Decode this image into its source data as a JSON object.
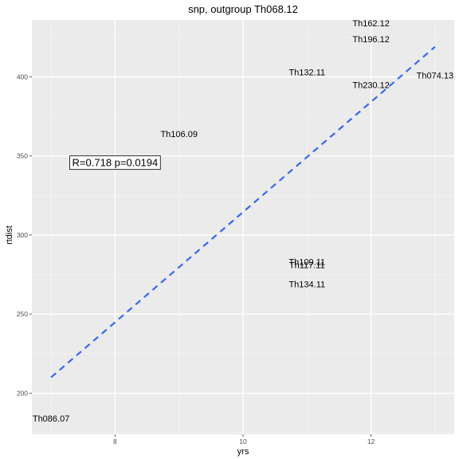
{
  "chart_data": {
    "type": "scatter",
    "title": "snp, outgroup Th068.12",
    "xlabel": "yrs",
    "ylabel": "rtdist",
    "xlim": [
      6.7,
      13.3
    ],
    "ylim": [
      174,
      436
    ],
    "xticks": [
      8,
      10,
      12
    ],
    "yticks": [
      200,
      250,
      300,
      350,
      400
    ],
    "grid": true,
    "points": [
      {
        "label": "Th086.07",
        "x": 7.0,
        "y": 184
      },
      {
        "label": "Th106.09",
        "x": 9.0,
        "y": 364
      },
      {
        "label": "Th132.11",
        "x": 11.0,
        "y": 403
      },
      {
        "label": "Th109.11",
        "x": 11.0,
        "y": 283
      },
      {
        "label": "Th117.11",
        "x": 11.0,
        "y": 281
      },
      {
        "label": "Th134.11",
        "x": 11.0,
        "y": 269
      },
      {
        "label": "Th162.12",
        "x": 12.0,
        "y": 434
      },
      {
        "label": "Th196.12",
        "x": 12.0,
        "y": 424
      },
      {
        "label": "Th230.12",
        "x": 12.0,
        "y": 395
      },
      {
        "label": "Th074.13",
        "x": 13.0,
        "y": 401
      }
    ],
    "fit_line": {
      "x": [
        7.0,
        13.0
      ],
      "y": [
        210,
        419
      ],
      "color": "#3366ff",
      "style": "dashed"
    },
    "annotation": {
      "text": "R=0.718 p=0.0194",
      "x": 8.0,
      "y": 346
    }
  }
}
